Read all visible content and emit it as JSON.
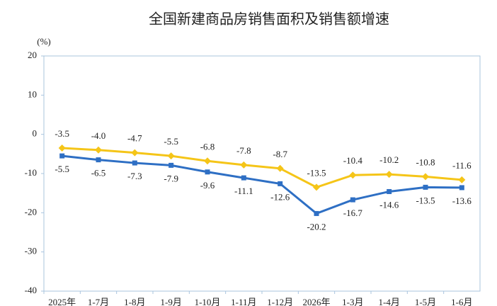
{
  "chart_data": {
    "type": "line",
    "title": "全国新建商品房销售面积及销售额增速",
    "y_unit": "(%)",
    "categories": [
      "2025年",
      "1-7月",
      "1-8月",
      "1-9月",
      "1-10月",
      "1-11月",
      "1-12月",
      "2026年",
      "1-3月",
      "1-4月",
      "1-5月",
      "1-6月"
    ],
    "series": [
      {
        "color": "#f5c518",
        "values": [
          -3.5,
          -4.0,
          -4.7,
          -5.5,
          -6.8,
          -7.8,
          -8.7,
          -13.5,
          -10.4,
          -10.2,
          -10.8,
          -11.6
        ],
        "value_labels": [
          "-3.5",
          "-4.0",
          "-4.7",
          "-5.5",
          "-6.8",
          "-7.8",
          "-8.7",
          "-13.5",
          "-10.4",
          "-10.2",
          "-10.8",
          "-11.6"
        ]
      },
      {
        "color": "#2e6fc4",
        "values": [
          -5.5,
          -6.5,
          -7.3,
          -7.9,
          -9.6,
          -11.1,
          -12.6,
          -20.2,
          -16.7,
          -14.6,
          -13.5,
          -13.6
        ],
        "value_labels": [
          "-5.5",
          "-6.5",
          "-7.3",
          "-7.9",
          "-9.6",
          "-11.1",
          "-12.6",
          "-20.2",
          "-16.7",
          "-14.6",
          "-13.5",
          "-13.6"
        ]
      }
    ],
    "ylim": [
      -40,
      20
    ],
    "yticks": [
      20,
      10,
      0,
      -10,
      -20,
      -30,
      -40
    ]
  }
}
